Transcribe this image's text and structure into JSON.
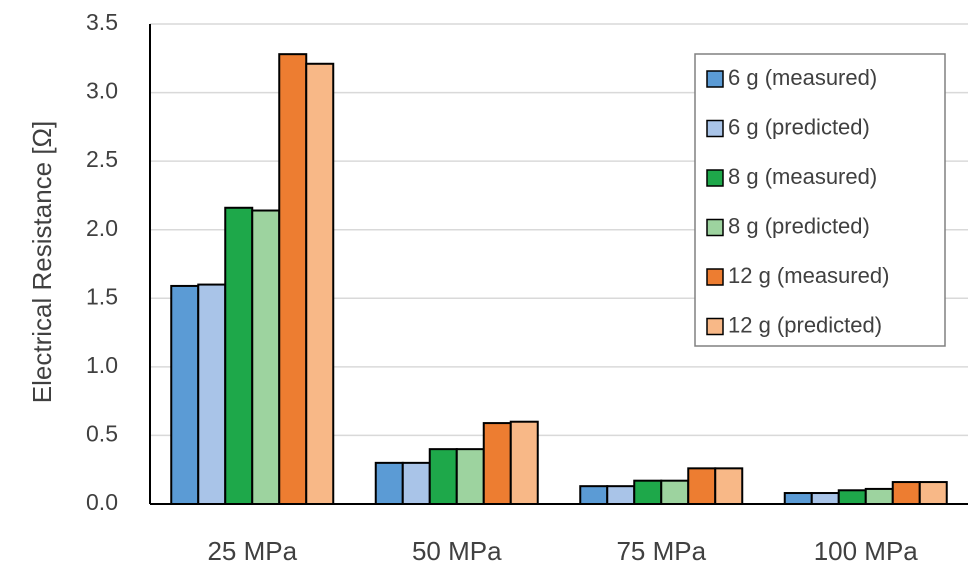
{
  "chart_data": {
    "type": "bar",
    "title": "",
    "xlabel": "",
    "ylabel": "Electrical Resistance [Ω]",
    "ylim": [
      0,
      3.5
    ],
    "yticks": [
      "0.0",
      "0.5",
      "1.0",
      "1.5",
      "2.0",
      "2.5",
      "3.0",
      "3.5"
    ],
    "grid": true,
    "legend_position": "top-right",
    "categories": [
      "25 MPa",
      "50 MPa",
      "75 MPa",
      "100 MPa"
    ],
    "series": [
      {
        "name": "6 g (measured)",
        "color": "#5b9bd5",
        "values": [
          1.59,
          0.3,
          0.13,
          0.08
        ]
      },
      {
        "name": "6 g (predicted)",
        "color": "#a9c4e8",
        "values": [
          1.6,
          0.3,
          0.13,
          0.08
        ]
      },
      {
        "name": "8 g (measured)",
        "color": "#1ea84a",
        "values": [
          2.16,
          0.4,
          0.17,
          0.1
        ]
      },
      {
        "name": "8 g (predicted)",
        "color": "#9dd39f",
        "values": [
          2.14,
          0.4,
          0.17,
          0.11
        ]
      },
      {
        "name": "12 g (measured)",
        "color": "#ed7d31",
        "values": [
          3.28,
          0.59,
          0.26,
          0.16
        ]
      },
      {
        "name": "12 g (predicted)",
        "color": "#f8b887",
        "values": [
          3.21,
          0.6,
          0.26,
          0.16
        ]
      }
    ]
  }
}
